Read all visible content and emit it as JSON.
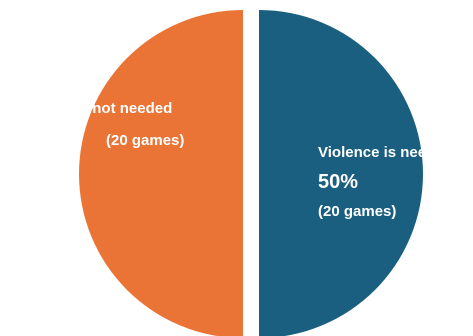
{
  "chart_data": {
    "type": "pie",
    "title": "",
    "slices": [
      {
        "label": "Violence is needed",
        "percent_label": "50%",
        "count_label": "(20 games)",
        "value": 20,
        "color": "#1a5f7f"
      },
      {
        "label": "Violence is not needed",
        "percent_label": "",
        "count_label": "(20 games)",
        "value": 20,
        "color": "#e97435"
      }
    ]
  }
}
